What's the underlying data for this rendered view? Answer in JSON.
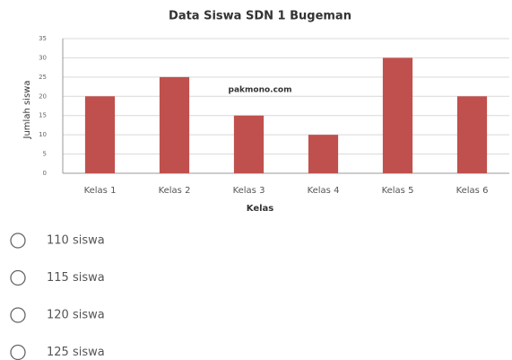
{
  "chart_data": {
    "type": "bar",
    "title": "Data Siswa SDN 1 Bugeman",
    "watermark": "pakmono.com",
    "x_label": "Kelas",
    "y_label": "Jumlah siswa",
    "categories": [
      "Kelas 1",
      "Kelas 2",
      "Kelas 3",
      "Kelas 4",
      "Kelas 5",
      "Kelas 6"
    ],
    "values": [
      20,
      25,
      15,
      10,
      30,
      20
    ],
    "color": "#c0504d",
    "ylim": [
      0,
      35
    ],
    "yticks": [
      0,
      5,
      10,
      15,
      20,
      25,
      30,
      35
    ],
    "grid": true
  },
  "options": [
    "110 siswa",
    "115 siswa",
    "120 siswa",
    "125 siswa"
  ]
}
